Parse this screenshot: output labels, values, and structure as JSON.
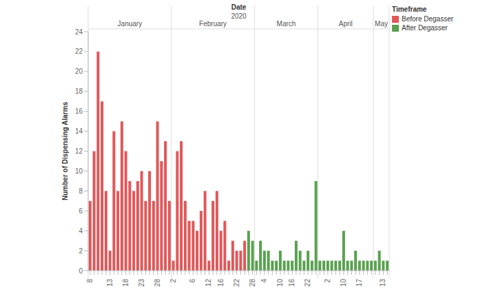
{
  "chart_data": {
    "type": "bar",
    "title": "Date",
    "subtitle": "2020",
    "y_label": "Number of Dispensing Alarms",
    "legend_title": "Timeframe",
    "legend": "top-right",
    "stacked": true,
    "grid": false,
    "months": [
      {
        "label": "January",
        "first": 0
      },
      {
        "label": "February",
        "first": 21
      },
      {
        "label": "March",
        "first": 42
      },
      {
        "label": "April",
        "first": 58
      },
      {
        "label": "May",
        "first": 72
      }
    ],
    "categories": [
      "8",
      null,
      null,
      null,
      null,
      "13",
      null,
      null,
      null,
      "18",
      null,
      null,
      null,
      "23",
      null,
      null,
      null,
      "28",
      null,
      null,
      null,
      "2",
      null,
      null,
      null,
      null,
      "6",
      null,
      null,
      null,
      "12",
      null,
      null,
      "16",
      null,
      null,
      null,
      "22",
      null,
      null,
      null,
      "28",
      null,
      null,
      "4",
      null,
      null,
      null,
      "10",
      null,
      null,
      "16",
      null,
      null,
      null,
      "22",
      null,
      null,
      null,
      null,
      "2",
      null,
      null,
      null,
      "10",
      null,
      null,
      null,
      "17",
      null,
      null,
      null,
      null,
      null,
      "13",
      null
    ],
    "series": [
      {
        "name": "Before Degasser",
        "color": "#e15759",
        "values": [
          7,
          12,
          22,
          17,
          8,
          2,
          14,
          8,
          15,
          12,
          9,
          8,
          9,
          10,
          7,
          10,
          7,
          15,
          11,
          13,
          7,
          1,
          12,
          13,
          7,
          5,
          5,
          4,
          6,
          8,
          1,
          7,
          8,
          4,
          5,
          1,
          3,
          2,
          2,
          3,
          null,
          null,
          null,
          null,
          null,
          null,
          null,
          null,
          null,
          null,
          null,
          null,
          null,
          null,
          null,
          null,
          null,
          null,
          null,
          null,
          null,
          null,
          null,
          null,
          null,
          null,
          null,
          null,
          null,
          null,
          null,
          null,
          null,
          null,
          null,
          null
        ]
      },
      {
        "name": "After Degasser",
        "color": "#59a14f",
        "values": [
          null,
          null,
          null,
          null,
          null,
          null,
          null,
          null,
          null,
          null,
          null,
          null,
          null,
          null,
          null,
          null,
          null,
          null,
          null,
          null,
          null,
          null,
          null,
          null,
          null,
          null,
          null,
          null,
          null,
          null,
          null,
          null,
          null,
          null,
          null,
          null,
          null,
          null,
          null,
          null,
          4,
          3,
          1,
          3,
          2,
          2,
          1,
          1,
          2,
          1,
          1,
          1,
          3,
          2,
          1,
          2,
          1,
          9,
          1,
          1,
          1,
          1,
          1,
          1,
          4,
          1,
          1,
          2,
          1,
          1,
          1,
          1,
          1,
          2,
          1,
          1
        ]
      }
    ],
    "ylim": [
      0,
      24
    ],
    "yticks": [
      0,
      2,
      4,
      6,
      8,
      10,
      12,
      14,
      16,
      18,
      20,
      22,
      24
    ]
  }
}
